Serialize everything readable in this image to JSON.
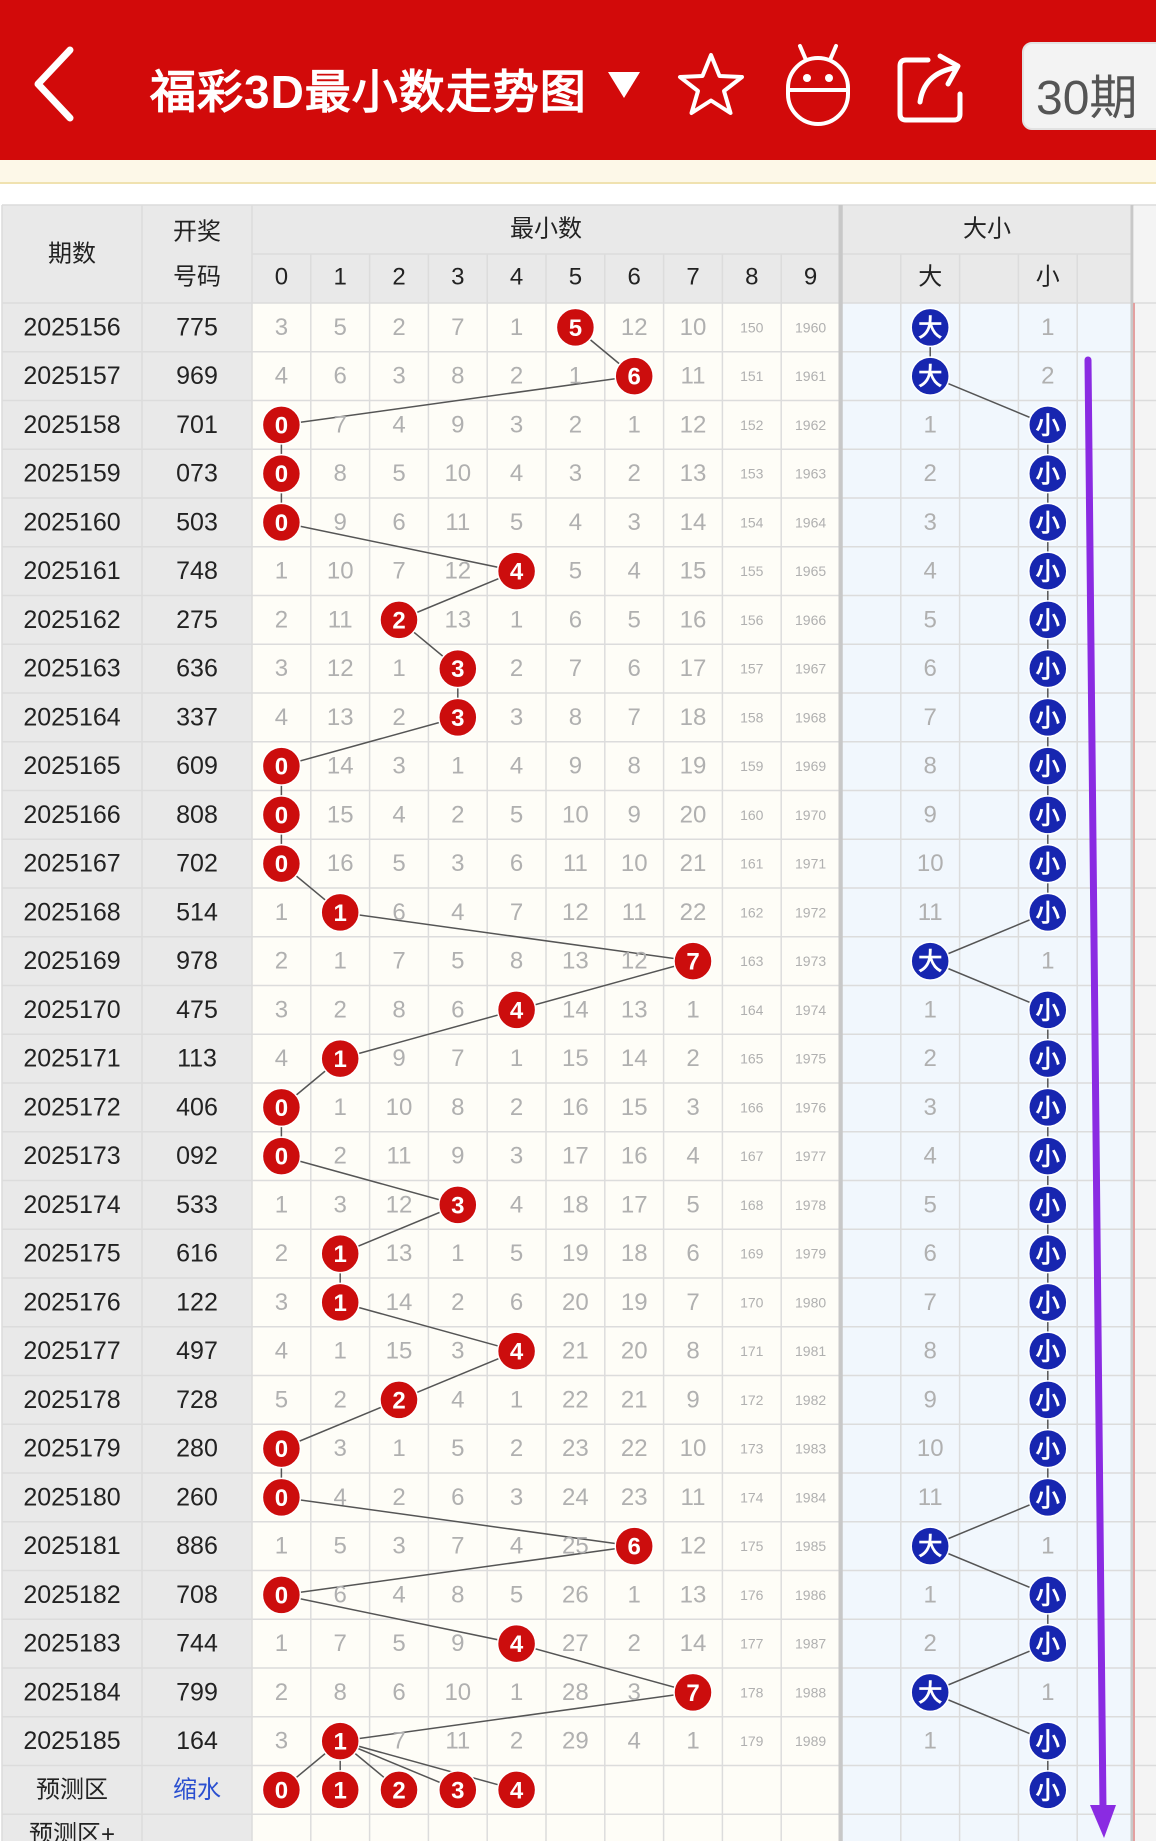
{
  "header": {
    "title": "福彩3D最小数走势图",
    "period_select": "30期",
    "icons": [
      "back-arrow-icon",
      "dropdown-caret-icon",
      "star-icon",
      "robot-icon",
      "share-icon"
    ]
  },
  "table": {
    "col_period": "期数",
    "col_number": [
      "开奖",
      "号码"
    ],
    "group_min": "最小数",
    "group_size": "大小",
    "digits": [
      "0",
      "1",
      "2",
      "3",
      "4",
      "5",
      "6",
      "7",
      "8",
      "9"
    ],
    "size_labels": [
      "大",
      "小"
    ],
    "rows": [
      {
        "period": "2025156",
        "number": "775",
        "min": 5,
        "size": "大",
        "min_miss": [
          3,
          5,
          2,
          7,
          1,
          null,
          12,
          10,
          150,
          1960
        ],
        "size_miss": [
          null,
          1
        ]
      },
      {
        "period": "2025157",
        "number": "969",
        "min": 6,
        "size": "大",
        "min_miss": [
          4,
          6,
          3,
          8,
          2,
          1,
          null,
          11,
          151,
          1961
        ],
        "size_miss": [
          null,
          2
        ]
      },
      {
        "period": "2025158",
        "number": "701",
        "min": 0,
        "size": "小",
        "min_miss": [
          null,
          7,
          4,
          9,
          3,
          2,
          1,
          12,
          152,
          1962
        ],
        "size_miss": [
          1,
          null
        ]
      },
      {
        "period": "2025159",
        "number": "073",
        "min": 0,
        "size": "小",
        "min_miss": [
          null,
          8,
          5,
          10,
          4,
          3,
          2,
          13,
          153,
          1963
        ],
        "size_miss": [
          2,
          null
        ]
      },
      {
        "period": "2025160",
        "number": "503",
        "min": 0,
        "size": "小",
        "min_miss": [
          null,
          9,
          6,
          11,
          5,
          4,
          3,
          14,
          154,
          1964
        ],
        "size_miss": [
          3,
          null
        ]
      },
      {
        "period": "2025161",
        "number": "748",
        "min": 4,
        "size": "小",
        "min_miss": [
          1,
          10,
          7,
          12,
          null,
          5,
          4,
          15,
          155,
          1965
        ],
        "size_miss": [
          4,
          null
        ]
      },
      {
        "period": "2025162",
        "number": "275",
        "min": 2,
        "size": "小",
        "min_miss": [
          2,
          11,
          null,
          13,
          1,
          6,
          5,
          16,
          156,
          1966
        ],
        "size_miss": [
          5,
          null
        ]
      },
      {
        "period": "2025163",
        "number": "636",
        "min": 3,
        "size": "小",
        "min_miss": [
          3,
          12,
          1,
          null,
          2,
          7,
          6,
          17,
          157,
          1967
        ],
        "size_miss": [
          6,
          null
        ]
      },
      {
        "period": "2025164",
        "number": "337",
        "min": 3,
        "size": "小",
        "min_miss": [
          4,
          13,
          2,
          null,
          3,
          8,
          7,
          18,
          158,
          1968
        ],
        "size_miss": [
          7,
          null
        ]
      },
      {
        "period": "2025165",
        "number": "609",
        "min": 0,
        "size": "小",
        "min_miss": [
          null,
          14,
          3,
          1,
          4,
          9,
          8,
          19,
          159,
          1969
        ],
        "size_miss": [
          8,
          null
        ]
      },
      {
        "period": "2025166",
        "number": "808",
        "min": 0,
        "size": "小",
        "min_miss": [
          null,
          15,
          4,
          2,
          5,
          10,
          9,
          20,
          160,
          1970
        ],
        "size_miss": [
          9,
          null
        ]
      },
      {
        "period": "2025167",
        "number": "702",
        "min": 0,
        "size": "小",
        "min_miss": [
          null,
          16,
          5,
          3,
          6,
          11,
          10,
          21,
          161,
          1971
        ],
        "size_miss": [
          10,
          null
        ]
      },
      {
        "period": "2025168",
        "number": "514",
        "min": 1,
        "size": "小",
        "min_miss": [
          1,
          null,
          6,
          4,
          7,
          12,
          11,
          22,
          162,
          1972
        ],
        "size_miss": [
          11,
          null
        ]
      },
      {
        "period": "2025169",
        "number": "978",
        "min": 7,
        "size": "大",
        "min_miss": [
          2,
          1,
          7,
          5,
          8,
          13,
          12,
          null,
          163,
          1973
        ],
        "size_miss": [
          null,
          1
        ]
      },
      {
        "period": "2025170",
        "number": "475",
        "min": 4,
        "size": "小",
        "min_miss": [
          3,
          2,
          8,
          6,
          null,
          14,
          13,
          1,
          164,
          1974
        ],
        "size_miss": [
          1,
          null
        ]
      },
      {
        "period": "2025171",
        "number": "113",
        "min": 1,
        "size": "小",
        "min_miss": [
          4,
          null,
          9,
          7,
          1,
          15,
          14,
          2,
          165,
          1975
        ],
        "size_miss": [
          2,
          null
        ]
      },
      {
        "period": "2025172",
        "number": "406",
        "min": 0,
        "size": "小",
        "min_miss": [
          null,
          1,
          10,
          8,
          2,
          16,
          15,
          3,
          166,
          1976
        ],
        "size_miss": [
          3,
          null
        ]
      },
      {
        "period": "2025173",
        "number": "092",
        "min": 0,
        "size": "小",
        "min_miss": [
          null,
          2,
          11,
          9,
          3,
          17,
          16,
          4,
          167,
          1977
        ],
        "size_miss": [
          4,
          null
        ]
      },
      {
        "period": "2025174",
        "number": "533",
        "min": 3,
        "size": "小",
        "min_miss": [
          1,
          3,
          12,
          null,
          4,
          18,
          17,
          5,
          168,
          1978
        ],
        "size_miss": [
          5,
          null
        ]
      },
      {
        "period": "2025175",
        "number": "616",
        "min": 1,
        "size": "小",
        "min_miss": [
          2,
          null,
          13,
          1,
          5,
          19,
          18,
          6,
          169,
          1979
        ],
        "size_miss": [
          6,
          null
        ]
      },
      {
        "period": "2025176",
        "number": "122",
        "min": 1,
        "size": "小",
        "min_miss": [
          3,
          null,
          14,
          2,
          6,
          20,
          19,
          7,
          170,
          1980
        ],
        "size_miss": [
          7,
          null
        ]
      },
      {
        "period": "2025177",
        "number": "497",
        "min": 4,
        "size": "小",
        "min_miss": [
          4,
          1,
          15,
          3,
          null,
          21,
          20,
          8,
          171,
          1981
        ],
        "size_miss": [
          8,
          null
        ]
      },
      {
        "period": "2025178",
        "number": "728",
        "min": 2,
        "size": "小",
        "min_miss": [
          5,
          2,
          null,
          4,
          1,
          22,
          21,
          9,
          172,
          1982
        ],
        "size_miss": [
          9,
          null
        ]
      },
      {
        "period": "2025179",
        "number": "280",
        "min": 0,
        "size": "小",
        "min_miss": [
          null,
          3,
          1,
          5,
          2,
          23,
          22,
          10,
          173,
          1983
        ],
        "size_miss": [
          10,
          null
        ]
      },
      {
        "period": "2025180",
        "number": "260",
        "min": 0,
        "size": "小",
        "min_miss": [
          null,
          4,
          2,
          6,
          3,
          24,
          23,
          11,
          174,
          1984
        ],
        "size_miss": [
          11,
          null
        ]
      },
      {
        "period": "2025181",
        "number": "886",
        "min": 6,
        "size": "大",
        "min_miss": [
          1,
          5,
          3,
          7,
          4,
          25,
          null,
          12,
          175,
          1985
        ],
        "size_miss": [
          null,
          1
        ]
      },
      {
        "period": "2025182",
        "number": "708",
        "min": 0,
        "size": "小",
        "min_miss": [
          null,
          6,
          4,
          8,
          5,
          26,
          1,
          13,
          176,
          1986
        ],
        "size_miss": [
          1,
          null
        ]
      },
      {
        "period": "2025183",
        "number": "744",
        "min": 4,
        "size": "小",
        "min_miss": [
          1,
          7,
          5,
          9,
          null,
          27,
          2,
          14,
          177,
          1987
        ],
        "size_miss": [
          2,
          null
        ]
      },
      {
        "period": "2025184",
        "number": "799",
        "min": 7,
        "size": "大",
        "min_miss": [
          2,
          8,
          6,
          10,
          1,
          28,
          3,
          null,
          178,
          1988
        ],
        "size_miss": [
          null,
          1
        ]
      },
      {
        "period": "2025185",
        "number": "164",
        "min": 1,
        "size": "小",
        "min_miss": [
          3,
          null,
          7,
          11,
          2,
          29,
          4,
          1,
          179,
          1989
        ],
        "size_miss": [
          1,
          null
        ]
      }
    ],
    "prediction_row": {
      "label": "预测区",
      "value": "缩水",
      "balls": [
        0,
        1,
        2,
        3,
        4
      ],
      "size": "小"
    },
    "prediction_plus_label": "预测区+"
  },
  "colors": {
    "header_red": "#d20a0a",
    "ball_red": "#cc0d0d",
    "ball_blue": "#1726b0",
    "arrow_purple": "#8a2be2",
    "miss_text": "#b0b0b0"
  }
}
